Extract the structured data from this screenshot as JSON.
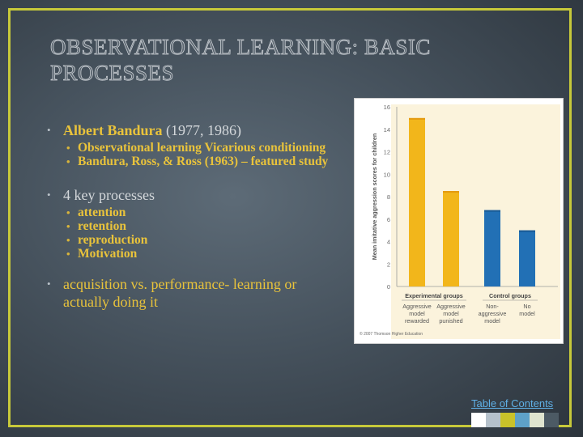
{
  "slide": {
    "title": "OBSERVATIONAL LEARNING: BASIC PROCESSES",
    "bullets": [
      {
        "label": "Albert Bandura",
        "suffix": " (1977, 1986)"
      },
      {
        "label": "4 key processes"
      },
      {
        "label": "acquisition vs. performance- learning or actually doing it"
      }
    ],
    "sub_bullets_1": [
      "Observational learning Vicarious conditioning",
      "Bandura, Ross, & Ross (1963) – featured study"
    ],
    "sub_bullets_2": [
      "attention",
      "retention",
      "reproduction",
      "Motivation"
    ],
    "toc_link": "Table of Contents",
    "swatch_colors": [
      "#ffffff",
      "#b5c1cb",
      "#c9c22a",
      "#5ea1c8",
      "#dfe4cf",
      "#4c5a64"
    ]
  },
  "chart_data": {
    "type": "bar",
    "ylabel": "Mean imitative aggression scores for children",
    "ylim": [
      0,
      16
    ],
    "yticks": [
      0,
      2,
      4,
      6,
      8,
      10,
      12,
      14,
      16
    ],
    "groups": [
      "Experimental groups",
      "Control groups"
    ],
    "categories": [
      "Aggressive model rewarded",
      "Aggressive model punished",
      "Non-aggressive model",
      "No model"
    ],
    "category_lines": [
      [
        "Aggressive",
        "model",
        "rewarded"
      ],
      [
        "Aggressive",
        "model",
        "punished"
      ],
      [
        "Non-",
        "aggressive",
        "model"
      ],
      [
        "No",
        "model"
      ]
    ],
    "values": [
      15,
      8.5,
      6.8,
      5
    ],
    "colors": [
      "#f2b61b",
      "#f2b61b",
      "#2270b5",
      "#2270b5"
    ],
    "credit": "© 2007 Thomson Higher Education"
  }
}
